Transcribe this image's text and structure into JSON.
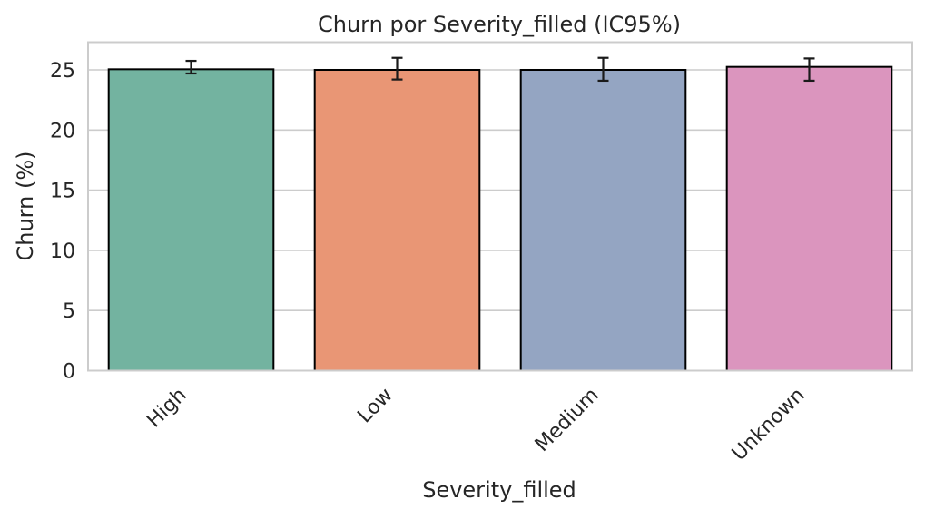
{
  "chart_data": {
    "type": "bar",
    "title": "Churn por Severity_filled (IC95%)",
    "xlabel": "Severity_filled",
    "ylabel": "Churn (%)",
    "categories": [
      "High",
      "Low",
      "Medium",
      "Unknown"
    ],
    "values": [
      25.05,
      25.0,
      25.0,
      25.25
    ],
    "error_low": [
      24.7,
      24.2,
      24.1,
      24.1
    ],
    "error_high": [
      25.75,
      26.0,
      26.0,
      25.95
    ],
    "colors": [
      "#73b3a0",
      "#e99675",
      "#94a5c2",
      "#db95be"
    ],
    "bar_edge_color": "#000000",
    "ylim": [
      0,
      27.3
    ],
    "yticks": [
      0,
      5,
      10,
      15,
      20,
      25
    ],
    "grid": "horizontal",
    "x_tick_rotation": -45
  }
}
